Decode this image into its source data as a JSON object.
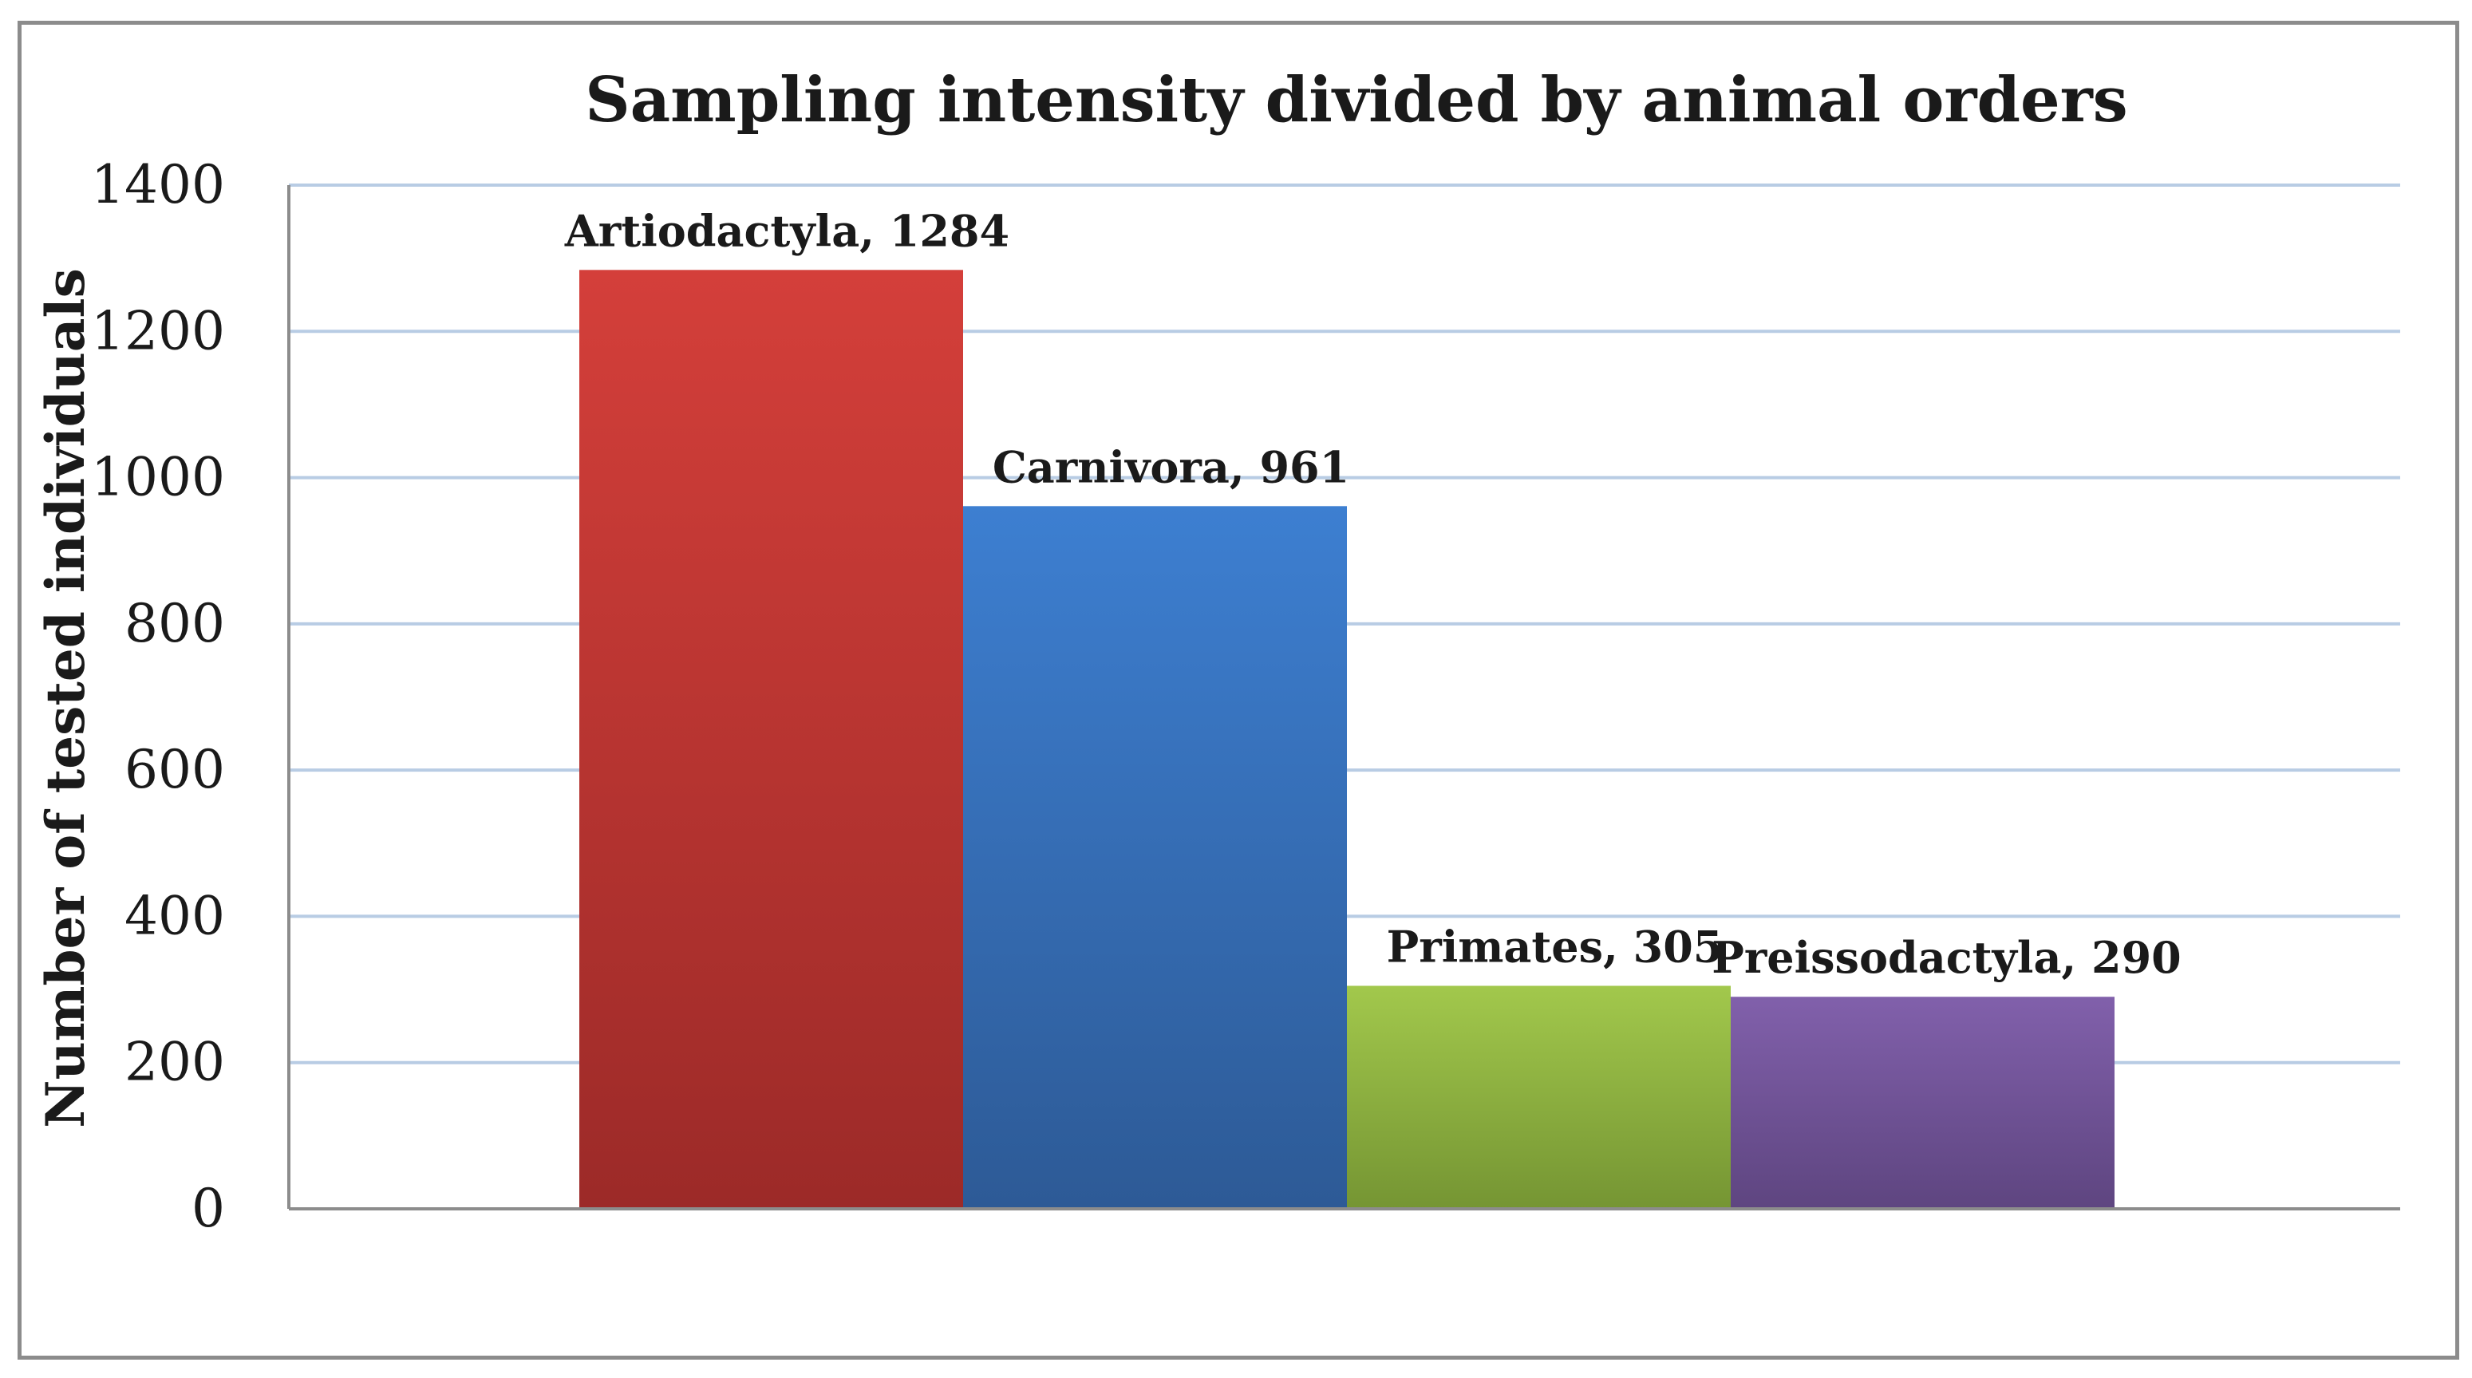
{
  "chart_data": {
    "type": "bar",
    "title": "Sampling intensity divided by animal orders",
    "xlabel": "",
    "ylabel": "Number of tested individuals",
    "ylim": [
      0,
      1400
    ],
    "yticks": [
      0,
      200,
      400,
      600,
      800,
      1000,
      1200,
      1400
    ],
    "grid": true,
    "legend": "none",
    "categories": [
      "Artiodactyla",
      "Carnivora",
      "Primates",
      "Preissodactyla"
    ],
    "values": [
      1284,
      961,
      305,
      290
    ],
    "data_labels": [
      "Artiodactyla, 1284",
      "Carnivora, 961",
      "Primates, 305",
      "Preissodactyla, 290"
    ],
    "colors": [
      {
        "top": "#d43f3a",
        "bottom": "#9c2a28"
      },
      {
        "top": "#3d7fd1",
        "bottom": "#2d5a96"
      },
      {
        "top": "#a2c84c",
        "bottom": "#759533"
      },
      {
        "top": "#8160ab",
        "bottom": "#5e4580"
      }
    ],
    "gridline_color": "#b8cce4"
  }
}
